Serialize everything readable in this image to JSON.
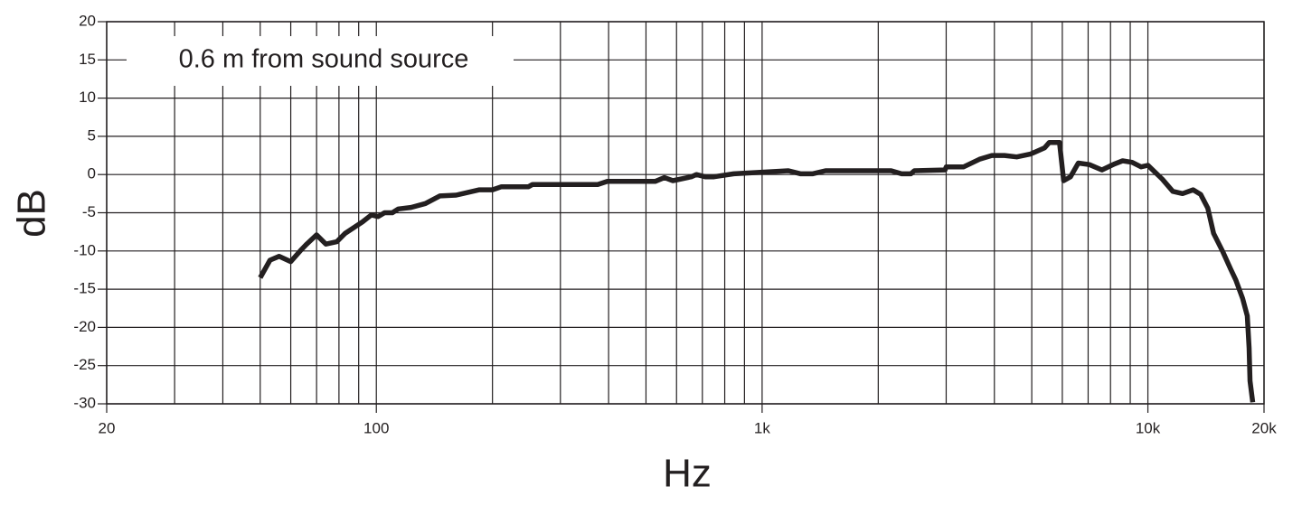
{
  "chart_data": {
    "type": "line",
    "annotation": "0.6 m from sound source",
    "xlabel": "Hz",
    "ylabel": "dB",
    "xscale": "log",
    "grid": true,
    "color": "#231f20",
    "xlim": [
      20,
      20000
    ],
    "ylim": [
      -30,
      20
    ],
    "xticks": [
      20,
      100,
      {
        "value": 1000,
        "label": "1k"
      },
      {
        "value": 10000,
        "label": "10k"
      },
      {
        "value": 20000,
        "label": "20k"
      }
    ],
    "xminor": [
      30,
      40,
      50,
      60,
      70,
      80,
      90,
      200,
      300,
      400,
      500,
      600,
      700,
      800,
      900,
      2000,
      3000,
      4000,
      5000,
      6000,
      7000,
      8000,
      9000
    ],
    "yticks": [
      -30,
      -25,
      -20,
      -15,
      -10,
      -5,
      0,
      5,
      10,
      15,
      20
    ],
    "x": [
      50,
      53,
      56,
      60,
      64,
      66,
      70,
      74,
      79,
      83,
      92,
      97,
      101,
      105,
      110,
      114,
      123,
      134,
      146,
      161,
      185,
      200,
      211,
      248,
      254,
      375,
      397,
      528,
      558,
      587,
      655,
      675,
      712,
      750,
      844,
      1170,
      1260,
      1350,
      1460,
      2160,
      2300,
      2430,
      2480,
      2980,
      3000,
      3330,
      3660,
      3940,
      4250,
      4570,
      4970,
      5400,
      5550,
      5900,
      6050,
      6300,
      6600,
      7050,
      7600,
      8200,
      8600,
      9100,
      9600,
      10000,
      10900,
      11600,
      12300,
      13100,
      13700,
      14300,
      14800,
      15600,
      16400,
      16900,
      17600,
      18100,
      18300,
      18400,
      18700
    ],
    "values": [
      -13.5,
      -11.2,
      -10.7,
      -11.4,
      -9.8,
      -9.1,
      -7.9,
      -9.1,
      -8.8,
      -7.7,
      -6.2,
      -5.3,
      -5.5,
      -5,
      -5,
      -4.5,
      -4.3,
      -3.8,
      -2.8,
      -2.7,
      -2,
      -2,
      -1.6,
      -1.6,
      -1.3,
      -1.3,
      -0.9,
      -0.9,
      -0.4,
      -0.8,
      -0.3,
      0,
      -0.3,
      -0.3,
      0.1,
      0.5,
      0.1,
      0.1,
      0.5,
      0.5,
      0.1,
      0.1,
      0.5,
      0.6,
      1,
      1,
      2,
      2.5,
      2.5,
      2.3,
      2.7,
      3.5,
      4.2,
      4.2,
      -0.8,
      -0.3,
      1.5,
      1.3,
      0.6,
      1.4,
      1.8,
      1.6,
      1,
      1.2,
      -0.6,
      -2.2,
      -2.5,
      -2,
      -2.6,
      -4.4,
      -7.7,
      -10,
      -12.4,
      -13.8,
      -16.2,
      -18.5,
      -22.7,
      -27,
      -29.8
    ]
  }
}
